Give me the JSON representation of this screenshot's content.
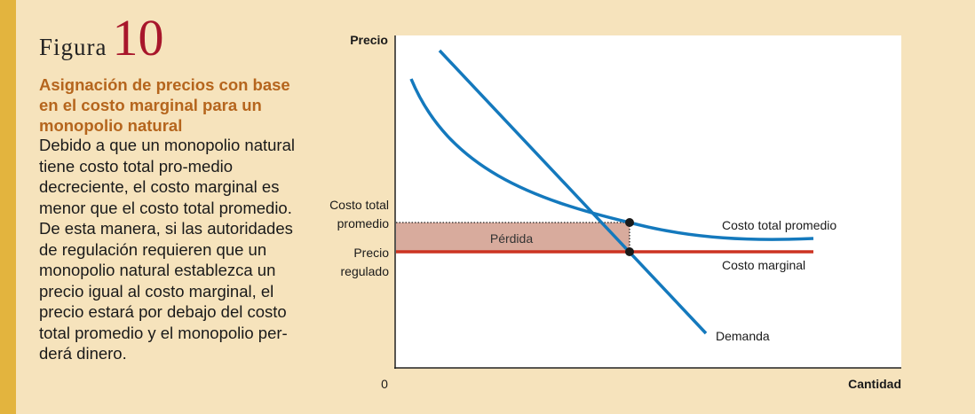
{
  "figure": {
    "label": "Figura",
    "number": "10",
    "title": "Asignación de precios con base en el costo marginal para un monopolio natural",
    "body": "Debido a que un monopolio natural tiene costo total pro-medio decreciente, el costo marginal es menor que el costo total promedio. De esta manera, si las autoridades de regulación requieren que un monopolio natural establezca un precio igual al costo marginal, el precio estará por debajo del costo total promedio y el monopolio per-derá dinero."
  },
  "diagram": {
    "y_axis_label": "Precio",
    "x_axis_label": "Cantidad",
    "origin_label": "0",
    "atc_price_label": [
      "Costo total",
      "promedio"
    ],
    "regulated_price_label": [
      "Precio",
      "regulado"
    ],
    "loss_label": "Pérdida",
    "curves": {
      "average_total_cost": "Costo total promedio",
      "marginal_cost": "Costo marginal",
      "demand": "Demanda"
    },
    "colors": {
      "background": "#f6e3bc",
      "side_bar": "#e3b43e",
      "plot_area": "#ffffff",
      "demand_curve": "#1479bd",
      "atc_curve": "#1479bd",
      "marginal_cost_line": "#cc3322",
      "loss_area": "#d8ab9d",
      "figure_number": "#a8162b",
      "title_text": "#b5651d"
    }
  }
}
